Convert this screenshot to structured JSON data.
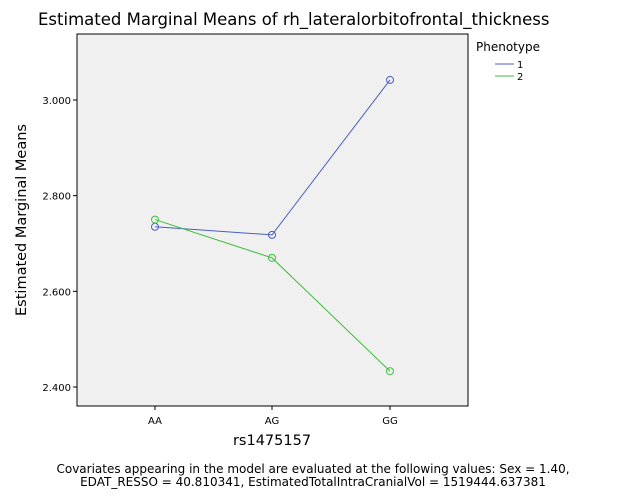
{
  "chart_data": {
    "type": "line",
    "title": "Estimated Marginal Means of rh_lateralorbitofrontal_thickness",
    "xlabel": "rs1475157",
    "ylabel": "Estimated Marginal Means",
    "categories": [
      "AA",
      "AG",
      "GG"
    ],
    "yticks": [
      "2.400",
      "2.600",
      "2.800",
      "3.000"
    ],
    "ylim": [
      2.36,
      3.14
    ],
    "legend_title": "Phenotype",
    "legend_position": "right",
    "grid": false,
    "markers": "open-circle",
    "series": [
      {
        "name": "1",
        "color": "#4a5fbf",
        "values": [
          2.735,
          2.718,
          3.042
        ]
      },
      {
        "name": "2",
        "color": "#3cbf3c",
        "values": [
          2.75,
          2.67,
          2.433
        ]
      }
    ],
    "plot_background": "#f0f0f0"
  },
  "footnote": {
    "line1": "Covariates appearing in the model are evaluated at the following values: Sex = 1.40,",
    "line2": "EDAT_RESSO = 40.810341, EstimatedTotalIntraCranialVol = 1519444.637381"
  }
}
